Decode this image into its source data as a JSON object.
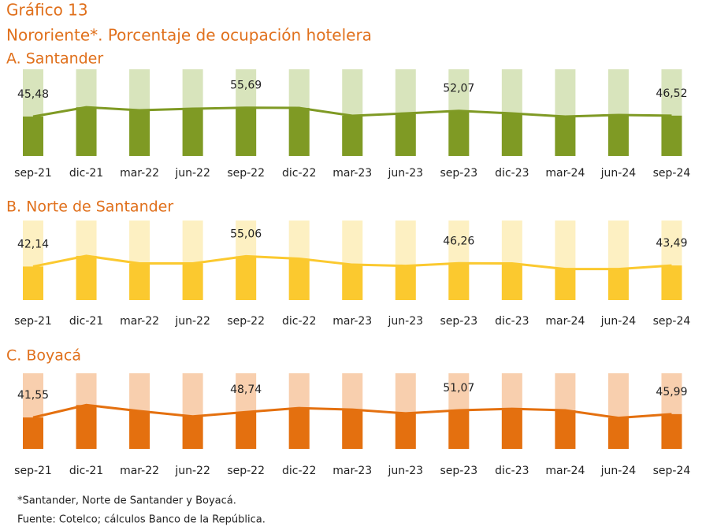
{
  "title": "Gráfico 13",
  "subtitle": "Nororiente*. Porcentaje de ocupación hotelera",
  "chart_data": [
    {
      "type": "bar-line",
      "title": "A. Santander",
      "categories": [
        "sep-21",
        "dic-21",
        "mar-22",
        "jun-22",
        "sep-22",
        "dic-22",
        "mar-23",
        "jun-23",
        "sep-23",
        "dic-23",
        "mar-24",
        "jun-24",
        "sep-24"
      ],
      "values": [
        45.48,
        56.2,
        52.7,
        54.5,
        55.69,
        55.4,
        46.4,
        49.1,
        52.07,
        49.1,
        45.5,
        47.3,
        46.52
      ],
      "value_labels": [
        "45,48",
        null,
        null,
        null,
        "55,69",
        null,
        null,
        null,
        "52,07",
        null,
        null,
        null,
        "46,52"
      ],
      "color": "#7f9a24",
      "background_color": "#d8e4bc",
      "ylim": [
        0,
        100
      ]
    },
    {
      "type": "bar-line",
      "title": "B. Norte de Santander",
      "categories": [
        "sep-21",
        "dic-21",
        "mar-22",
        "jun-22",
        "sep-22",
        "dic-22",
        "mar-23",
        "jun-23",
        "sep-23",
        "dic-23",
        "mar-24",
        "jun-24",
        "sep-24"
      ],
      "values": [
        42.14,
        55.5,
        46,
        46,
        55.06,
        52,
        44.5,
        43,
        46.26,
        46,
        39,
        39,
        43.49
      ],
      "value_labels": [
        "42,14",
        null,
        null,
        null,
        "55,06",
        null,
        null,
        null,
        "46,26",
        null,
        null,
        null,
        "43,49"
      ],
      "color": "#fbc92f",
      "background_color": "#fdf0c2",
      "ylim": [
        0,
        100
      ]
    },
    {
      "type": "bar-line",
      "title": "C. Boyacá",
      "categories": [
        "sep-21",
        "dic-21",
        "mar-22",
        "jun-22",
        "sep-22",
        "dic-22",
        "mar-23",
        "jun-23",
        "sep-23",
        "dic-23",
        "mar-24",
        "jun-24",
        "sep-24"
      ],
      "values": [
        41.55,
        58,
        50,
        43,
        48.74,
        54,
        52,
        47,
        51.07,
        53,
        51,
        41,
        45.99
      ],
      "value_labels": [
        "41,55",
        null,
        null,
        null,
        "48,74",
        null,
        null,
        null,
        "51,07",
        null,
        null,
        null,
        "45,99"
      ],
      "color": "#e4700f",
      "background_color": "#f8cfae",
      "ylim": [
        0,
        100
      ]
    }
  ],
  "notes": [
    "*Santander, Norte de Santander y Boyacá.",
    "Fuente: Cotelco; cálculos Banco de la República."
  ]
}
